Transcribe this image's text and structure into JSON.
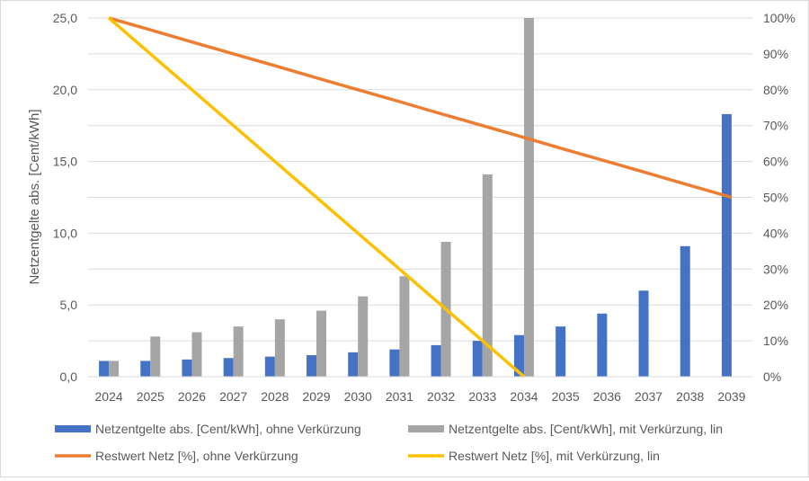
{
  "chart_data": {
    "type": "bar",
    "categories": [
      "2024",
      "2025",
      "2026",
      "2027",
      "2028",
      "2029",
      "2030",
      "2031",
      "2032",
      "2033",
      "2034",
      "2035",
      "2036",
      "2037",
      "2038",
      "2039"
    ],
    "ylabel": "Netzentgelte abs. [Cent/kWh]",
    "ylim": [
      0,
      25
    ],
    "y_ticks": [
      "0,0",
      "5,0",
      "10,0",
      "15,0",
      "20,0",
      "25,0"
    ],
    "y2lim": [
      0,
      100
    ],
    "y2_ticks": [
      "0%",
      "10%",
      "20%",
      "30%",
      "40%",
      "50%",
      "60%",
      "70%",
      "80%",
      "90%",
      "100%"
    ],
    "grid": "horizontal",
    "legend_position": "bottom",
    "series": [
      {
        "name": "Netzentgelte abs. [Cent/kWh], ohne Verkürzung",
        "type": "bar",
        "axis": "left",
        "color": "#4472c4",
        "values": [
          1.1,
          1.1,
          1.2,
          1.3,
          1.4,
          1.5,
          1.7,
          1.9,
          2.2,
          2.5,
          2.9,
          3.5,
          4.4,
          6.0,
          9.1,
          18.3
        ]
      },
      {
        "name": "Netzentgelte abs. [Cent/kWh], mit Verkürzung, lin",
        "type": "bar",
        "axis": "left",
        "color": "#a5a5a5",
        "values": [
          1.1,
          2.8,
          3.1,
          3.5,
          4.0,
          4.6,
          5.6,
          7.0,
          9.4,
          14.1,
          25.0,
          null,
          null,
          null,
          null,
          null
        ]
      },
      {
        "name": "Restwert Netz [%], ohne Verkürzung",
        "type": "line",
        "axis": "right",
        "color": "#ed7d31",
        "values": [
          100,
          96.7,
          93.3,
          90,
          86.7,
          83.3,
          80,
          76.7,
          73.3,
          70,
          66.7,
          63.3,
          60,
          56.7,
          53.3,
          50
        ]
      },
      {
        "name": "Restwert Netz [%], mit Verkürzung, lin",
        "type": "line",
        "axis": "right",
        "color": "#ffc000",
        "values": [
          100,
          90,
          80,
          70,
          60,
          50,
          40,
          30,
          20,
          10,
          0,
          null,
          null,
          null,
          null,
          null
        ]
      }
    ]
  }
}
